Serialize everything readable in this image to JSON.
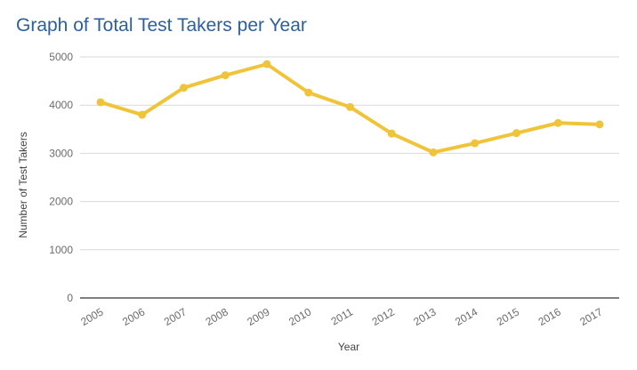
{
  "chart_data": {
    "type": "line",
    "title": "Graph of Total Test Takers per Year",
    "xlabel": "Year",
    "ylabel": "Number of Test Takers",
    "categories": [
      "2005",
      "2006",
      "2007",
      "2008",
      "2009",
      "2010",
      "2011",
      "2012",
      "2013",
      "2014",
      "2015",
      "2016",
      "2017"
    ],
    "series": [
      {
        "values": [
          4060,
          3800,
          4360,
          4620,
          4850,
          4260,
          3960,
          3410,
          3020,
          3210,
          3420,
          3630,
          3600
        ]
      }
    ],
    "yticks": [
      "0",
      "1000",
      "2000",
      "3000",
      "4000",
      "5000"
    ],
    "ylim": [
      0,
      5000
    ],
    "grid": true,
    "colors": {
      "line": "#f0c43a",
      "grid": "#d9d9d9",
      "axis": "#333333"
    }
  }
}
